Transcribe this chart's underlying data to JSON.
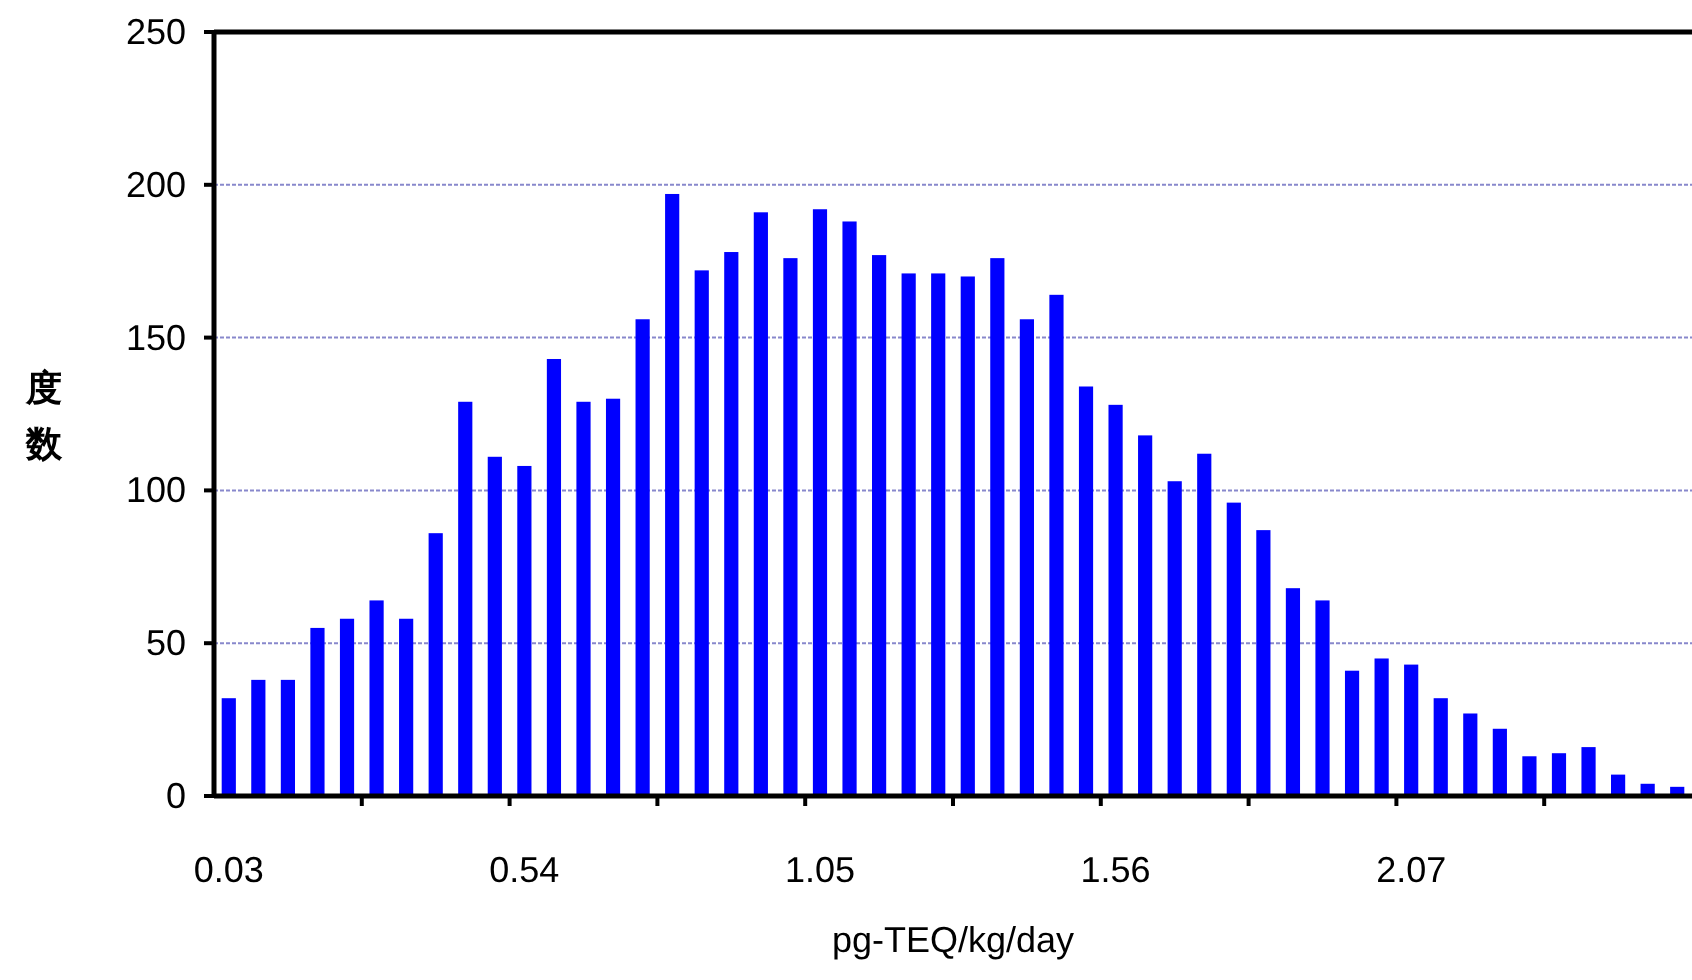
{
  "chart_data": {
    "type": "bar",
    "xlabel": "pg-TEQ/kg/day",
    "ylabel": "度数",
    "categories": [
      "0.03",
      null,
      null,
      null,
      null,
      null,
      null,
      null,
      null,
      null,
      "0.54",
      null,
      null,
      null,
      null,
      null,
      null,
      null,
      null,
      null,
      "1.05",
      null,
      null,
      null,
      null,
      null,
      null,
      null,
      null,
      null,
      "1.56",
      null,
      null,
      null,
      null,
      null,
      null,
      null,
      null,
      null,
      "2.07",
      null,
      null,
      null,
      null,
      null,
      null,
      null,
      null,
      null
    ],
    "values": [
      32,
      38,
      38,
      55,
      58,
      64,
      58,
      86,
      129,
      111,
      108,
      143,
      129,
      130,
      156,
      197,
      172,
      178,
      191,
      176,
      192,
      188,
      177,
      171,
      171,
      170,
      176,
      156,
      164,
      134,
      128,
      118,
      103,
      112,
      96,
      87,
      68,
      64,
      41,
      45,
      43,
      32,
      27,
      22,
      13,
      14,
      16,
      7,
      4,
      3
    ],
    "color": "#0000ff",
    "ylim": [
      0,
      250
    ],
    "yticks": [
      0,
      50,
      100,
      150,
      200,
      250
    ],
    "grid": "y"
  }
}
